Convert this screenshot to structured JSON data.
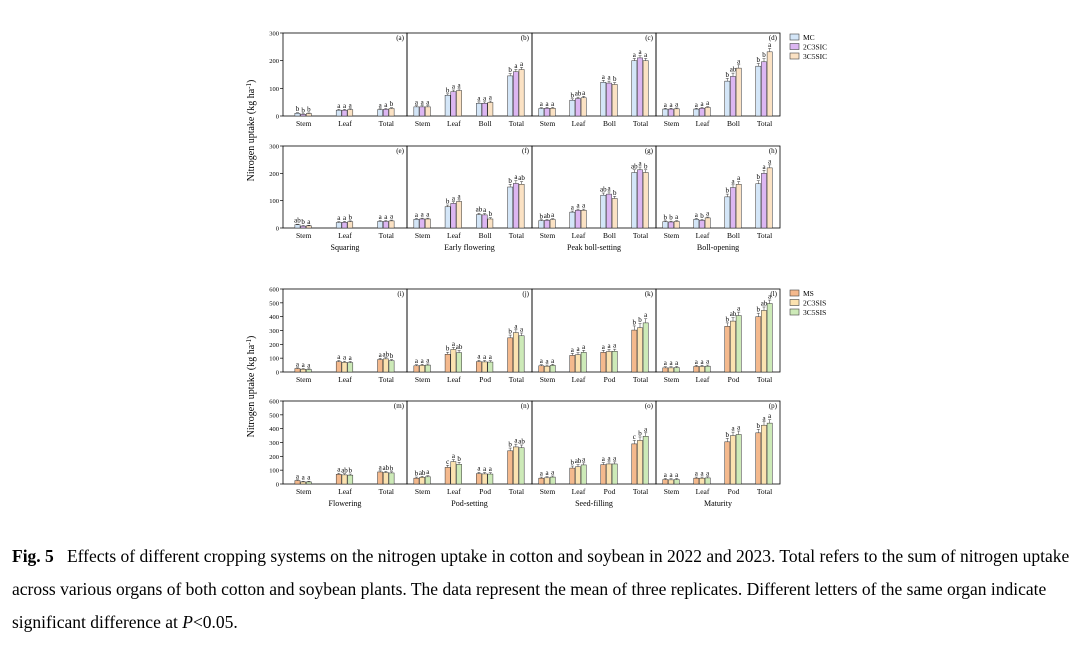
{
  "figure": {
    "groups": [
      {
        "name": "cotton",
        "yaxis_label": "Nitrogen uptake (kg ha",
        "yaxis_label_sup": "-1",
        "yaxis_label_close": ")",
        "ylim": [
          0,
          300
        ],
        "yticks": [
          "0",
          "100",
          "200",
          "300"
        ],
        "legend": [
          {
            "label": "MC",
            "color": "#d4e6f8"
          },
          {
            "label": "2C3SIC",
            "color": "#dcb6f2"
          },
          {
            "label": "3C5SIC",
            "color": "#fbe2c4"
          }
        ]
      },
      {
        "name": "soybean",
        "yaxis_label": "Nitrogen uptake (kg ha",
        "yaxis_label_sup": "-1",
        "yaxis_label_close": ")",
        "ylim": [
          0,
          600
        ],
        "yticks": [
          "0",
          "100",
          "200",
          "300",
          "400",
          "500",
          "600"
        ],
        "legend": [
          {
            "label": "MS",
            "color": "#f4b98d"
          },
          {
            "label": "2C3SIS",
            "color": "#fbe2b0"
          },
          {
            "label": "3C5SIS",
            "color": "#cdeab8"
          }
        ]
      }
    ]
  },
  "chart_data": [
    {
      "type": "bar",
      "panel": "(a)",
      "group": "cotton",
      "stage": "",
      "categories": [
        "Stem",
        "Leaf",
        "Total"
      ],
      "values": [
        [
          10,
          6,
          9
        ],
        [
          21,
          21,
          23
        ],
        [
          23,
          24,
          27
        ]
      ],
      "errors": [
        [
          2,
          2,
          2
        ],
        [
          3,
          3,
          3
        ],
        [
          3,
          3,
          3
        ]
      ],
      "letters": [
        [
          "b",
          "b",
          "b"
        ],
        [
          "a",
          "a",
          "a"
        ],
        [
          "a",
          "a",
          "b"
        ]
      ]
    },
    {
      "type": "bar",
      "panel": "(b)",
      "group": "cotton",
      "stage": "",
      "categories": [
        "Stem",
        "Leaf",
        "Boll",
        "Total"
      ],
      "values": [
        [
          33,
          33,
          33
        ],
        [
          75,
          88,
          92
        ],
        [
          46,
          46,
          49
        ],
        [
          145,
          160,
          168
        ]
      ],
      "errors": [
        [
          4,
          4,
          4
        ],
        [
          5,
          6,
          6
        ],
        [
          5,
          5,
          5
        ],
        [
          8,
          8,
          8
        ]
      ],
      "letters": [
        [
          "a",
          "a",
          "a"
        ],
        [
          "b",
          "a",
          "a"
        ],
        [
          "a",
          "a",
          "a"
        ],
        [
          "b",
          "a",
          "a"
        ]
      ]
    },
    {
      "type": "bar",
      "panel": "(c)",
      "group": "cotton",
      "stage": "",
      "categories": [
        "Stem",
        "Leaf",
        "Boll",
        "Total"
      ],
      "values": [
        [
          27,
          28,
          28
        ],
        [
          57,
          63,
          66
        ],
        [
          122,
          119,
          114
        ],
        [
          200,
          210,
          200
        ]
      ],
      "errors": [
        [
          3,
          3,
          3
        ],
        [
          5,
          5,
          5
        ],
        [
          7,
          7,
          7
        ],
        [
          8,
          8,
          8
        ]
      ],
      "letters": [
        [
          "a",
          "a",
          "a"
        ],
        [
          "b",
          "ab",
          "a"
        ],
        [
          "a",
          "a",
          "b"
        ],
        [
          "a",
          "a",
          "a"
        ]
      ]
    },
    {
      "type": "bar",
      "panel": "(d)",
      "group": "cotton",
      "stage": "",
      "categories": [
        "Stem",
        "Leaf",
        "Boll",
        "Total"
      ],
      "values": [
        [
          25,
          25,
          26
        ],
        [
          25,
          28,
          31
        ],
        [
          126,
          143,
          173
        ],
        [
          180,
          196,
          232
        ]
      ],
      "errors": [
        [
          3,
          3,
          3
        ],
        [
          3,
          3,
          3
        ],
        [
          10,
          12,
          12
        ],
        [
          10,
          11,
          12
        ]
      ],
      "letters": [
        [
          "a",
          "a",
          "a"
        ],
        [
          "a",
          "a",
          "a"
        ],
        [
          "b",
          "ab",
          "a"
        ],
        [
          "b",
          "b",
          "a"
        ]
      ]
    },
    {
      "type": "bar",
      "panel": "(e)",
      "group": "cotton",
      "stage": "Squaring",
      "categories": [
        "Stem",
        "Leaf",
        "Total"
      ],
      "values": [
        [
          12,
          7,
          8
        ],
        [
          20,
          21,
          23
        ],
        [
          24,
          24,
          26
        ]
      ],
      "errors": [
        [
          2,
          2,
          2
        ],
        [
          3,
          3,
          3
        ],
        [
          3,
          3,
          3
        ]
      ],
      "letters": [
        [
          "ab",
          "b",
          "a"
        ],
        [
          "a",
          "a",
          "b"
        ],
        [
          "a",
          "a",
          "a"
        ]
      ]
    },
    {
      "type": "bar",
      "panel": "(f)",
      "group": "cotton",
      "stage": "Early flowering",
      "categories": [
        "Stem",
        "Leaf",
        "Boll",
        "Total"
      ],
      "values": [
        [
          32,
          33,
          33
        ],
        [
          78,
          90,
          97
        ],
        [
          49,
          48,
          33
        ],
        [
          150,
          163,
          160
        ]
      ],
      "errors": [
        [
          3,
          3,
          3
        ],
        [
          6,
          6,
          6
        ],
        [
          5,
          5,
          5
        ],
        [
          10,
          10,
          10
        ]
      ],
      "letters": [
        [
          "a",
          "a",
          "a"
        ],
        [
          "b",
          "a",
          "a"
        ],
        [
          "ab",
          "a",
          "b"
        ],
        [
          "b",
          "a",
          "ab"
        ]
      ]
    },
    {
      "type": "bar",
      "panel": "(g)",
      "group": "cotton",
      "stage": "Peak boll-setting",
      "categories": [
        "Stem",
        "Leaf",
        "Boll",
        "Total"
      ],
      "values": [
        [
          27,
          28,
          31
        ],
        [
          58,
          65,
          65
        ],
        [
          120,
          124,
          108
        ],
        [
          203,
          213,
          203
        ]
      ],
      "errors": [
        [
          3,
          3,
          3
        ],
        [
          4,
          4,
          4
        ],
        [
          8,
          8,
          8
        ],
        [
          10,
          10,
          10
        ]
      ],
      "letters": [
        [
          "b",
          "ab",
          "a"
        ],
        [
          "a",
          "a",
          "a"
        ],
        [
          "ab",
          "a",
          "b"
        ],
        [
          "ab",
          "a",
          "b"
        ]
      ]
    },
    {
      "type": "bar",
      "panel": "(h)",
      "group": "cotton",
      "stage": "Boll-opening",
      "categories": [
        "Stem",
        "Leaf",
        "Boll",
        "Total"
      ],
      "values": [
        [
          23,
          22,
          24
        ],
        [
          32,
          28,
          37
        ],
        [
          114,
          148,
          160
        ],
        [
          162,
          200,
          220
        ]
      ],
      "errors": [
        [
          3,
          3,
          3
        ],
        [
          3,
          3,
          3
        ],
        [
          10,
          10,
          10
        ],
        [
          11,
          11,
          11
        ]
      ],
      "letters": [
        [
          "b",
          "b",
          "a"
        ],
        [
          "a",
          "b",
          "a"
        ],
        [
          "b",
          "a",
          "a"
        ],
        [
          "b",
          "a",
          "a"
        ]
      ]
    },
    {
      "type": "bar",
      "panel": "(i)",
      "group": "soybean",
      "stage": "",
      "categories": [
        "Stem",
        "Leaf",
        "Total"
      ],
      "values": [
        [
          25,
          20,
          18
        ],
        [
          75,
          70,
          68
        ],
        [
          90,
          95,
          82
        ]
      ],
      "errors": [
        [
          5,
          5,
          5
        ],
        [
          8,
          8,
          8
        ],
        [
          8,
          8,
          8
        ]
      ],
      "letters": [
        [
          "a",
          "a",
          "a"
        ],
        [
          "a",
          "a",
          "a"
        ],
        [
          "a",
          "ab",
          "b"
        ]
      ]
    },
    {
      "type": "bar",
      "panel": "(j)",
      "group": "soybean",
      "stage": "",
      "categories": [
        "Stem",
        "Leaf",
        "Pod",
        "Total"
      ],
      "values": [
        [
          45,
          48,
          50
        ],
        [
          128,
          163,
          140
        ],
        [
          75,
          73,
          72
        ],
        [
          247,
          285,
          262
        ]
      ],
      "errors": [
        [
          8,
          8,
          8
        ],
        [
          15,
          15,
          15
        ],
        [
          10,
          10,
          10
        ],
        [
          20,
          20,
          20
        ]
      ],
      "letters": [
        [
          "a",
          "a",
          "a"
        ],
        [
          "b",
          "a",
          "ab"
        ],
        [
          "a",
          "a",
          "a"
        ],
        [
          "b",
          "a",
          "a"
        ]
      ]
    },
    {
      "type": "bar",
      "panel": "(k)",
      "group": "soybean",
      "stage": "",
      "categories": [
        "Stem",
        "Leaf",
        "Pod",
        "Total"
      ],
      "values": [
        [
          45,
          42,
          48
        ],
        [
          120,
          125,
          142
        ],
        [
          142,
          148,
          150
        ],
        [
          303,
          320,
          355
        ]
      ],
      "errors": [
        [
          8,
          8,
          8
        ],
        [
          15,
          15,
          15
        ],
        [
          15,
          15,
          15
        ],
        [
          30,
          30,
          30
        ]
      ],
      "letters": [
        [
          "a",
          "a",
          "a"
        ],
        [
          "a",
          "a",
          "a"
        ],
        [
          "a",
          "a",
          "a"
        ],
        [
          "b",
          "b",
          "a"
        ]
      ]
    },
    {
      "type": "bar",
      "panel": "(l)",
      "group": "soybean",
      "stage": "",
      "categories": [
        "Stem",
        "Leaf",
        "Pod",
        "Total"
      ],
      "values": [
        [
          30,
          30,
          32
        ],
        [
          40,
          40,
          42
        ],
        [
          330,
          368,
          408
        ],
        [
          400,
          445,
          495
        ]
      ],
      "errors": [
        [
          8,
          8,
          8
        ],
        [
          8,
          8,
          8
        ],
        [
          25,
          25,
          25
        ],
        [
          25,
          25,
          25
        ]
      ],
      "letters": [
        [
          "a",
          "a",
          "a"
        ],
        [
          "a",
          "a",
          "a"
        ],
        [
          "b",
          "ab",
          "a"
        ],
        [
          "b",
          "ab",
          "a"
        ]
      ]
    },
    {
      "type": "bar",
      "panel": "(m)",
      "group": "soybean",
      "stage": "Flowering",
      "categories": [
        "Stem",
        "Leaf",
        "Total"
      ],
      "values": [
        [
          25,
          15,
          15
        ],
        [
          70,
          66,
          64
        ],
        [
          87,
          83,
          80
        ]
      ],
      "errors": [
        [
          5,
          5,
          5
        ],
        [
          8,
          8,
          8
        ],
        [
          8,
          8,
          8
        ]
      ],
      "letters": [
        [
          "a",
          "a",
          "a"
        ],
        [
          "a",
          "ab",
          "b"
        ],
        [
          "a",
          "ab",
          "b"
        ]
      ]
    },
    {
      "type": "bar",
      "panel": "(n)",
      "group": "soybean",
      "stage": "Pod-setting",
      "categories": [
        "Stem",
        "Leaf",
        "Pod",
        "Total"
      ],
      "values": [
        [
          42,
          48,
          52
        ],
        [
          120,
          162,
          142
        ],
        [
          75,
          73,
          72
        ],
        [
          240,
          268,
          262
        ]
      ],
      "errors": [
        [
          8,
          8,
          8
        ],
        [
          15,
          15,
          15
        ],
        [
          10,
          10,
          10
        ],
        [
          20,
          20,
          20
        ]
      ],
      "letters": [
        [
          "b",
          "ab",
          "a"
        ],
        [
          "c",
          "a",
          "b"
        ],
        [
          "a",
          "a",
          "a"
        ],
        [
          "b",
          "a",
          "ab"
        ]
      ]
    },
    {
      "type": "bar",
      "panel": "(o)",
      "group": "soybean",
      "stage": "Seed-filling",
      "categories": [
        "Stem",
        "Leaf",
        "Pod",
        "Total"
      ],
      "values": [
        [
          42,
          45,
          50
        ],
        [
          115,
          125,
          138
        ],
        [
          140,
          145,
          145
        ],
        [
          290,
          315,
          345
        ]
      ],
      "errors": [
        [
          8,
          8,
          8
        ],
        [
          15,
          15,
          15
        ],
        [
          15,
          15,
          15
        ],
        [
          25,
          25,
          25
        ]
      ],
      "letters": [
        [
          "a",
          "a",
          "a"
        ],
        [
          "b",
          "ab",
          "a"
        ],
        [
          "a",
          "a",
          "a"
        ],
        [
          "c",
          "b",
          "a"
        ]
      ]
    },
    {
      "type": "bar",
      "panel": "(p)",
      "group": "soybean",
      "stage": "Maturity",
      "categories": [
        "Stem",
        "Leaf",
        "Pod",
        "Total"
      ],
      "values": [
        [
          32,
          30,
          32
        ],
        [
          42,
          42,
          44
        ],
        [
          305,
          350,
          358
        ],
        [
          370,
          425,
          440
        ]
      ],
      "errors": [
        [
          8,
          8,
          8
        ],
        [
          8,
          8,
          8
        ],
        [
          25,
          25,
          25
        ],
        [
          25,
          25,
          25
        ]
      ],
      "letters": [
        [
          "a",
          "a",
          "a"
        ],
        [
          "a",
          "a",
          "a"
        ],
        [
          "b",
          "a",
          "a"
        ],
        [
          "b",
          "a",
          "a"
        ]
      ]
    }
  ],
  "caption": {
    "label": "Fig. 5",
    "text": "Effects of different cropping systems on the nitrogen uptake in cotton and soybean in 2022 and 2023. Total refers to the sum of nitrogen uptake across various organs of both cotton and soybean plants. The data represent the mean of three replicates. Different letters of the same organ indicate significant difference at ",
    "p_symbol": "P",
    "p_value": "<0.05."
  }
}
